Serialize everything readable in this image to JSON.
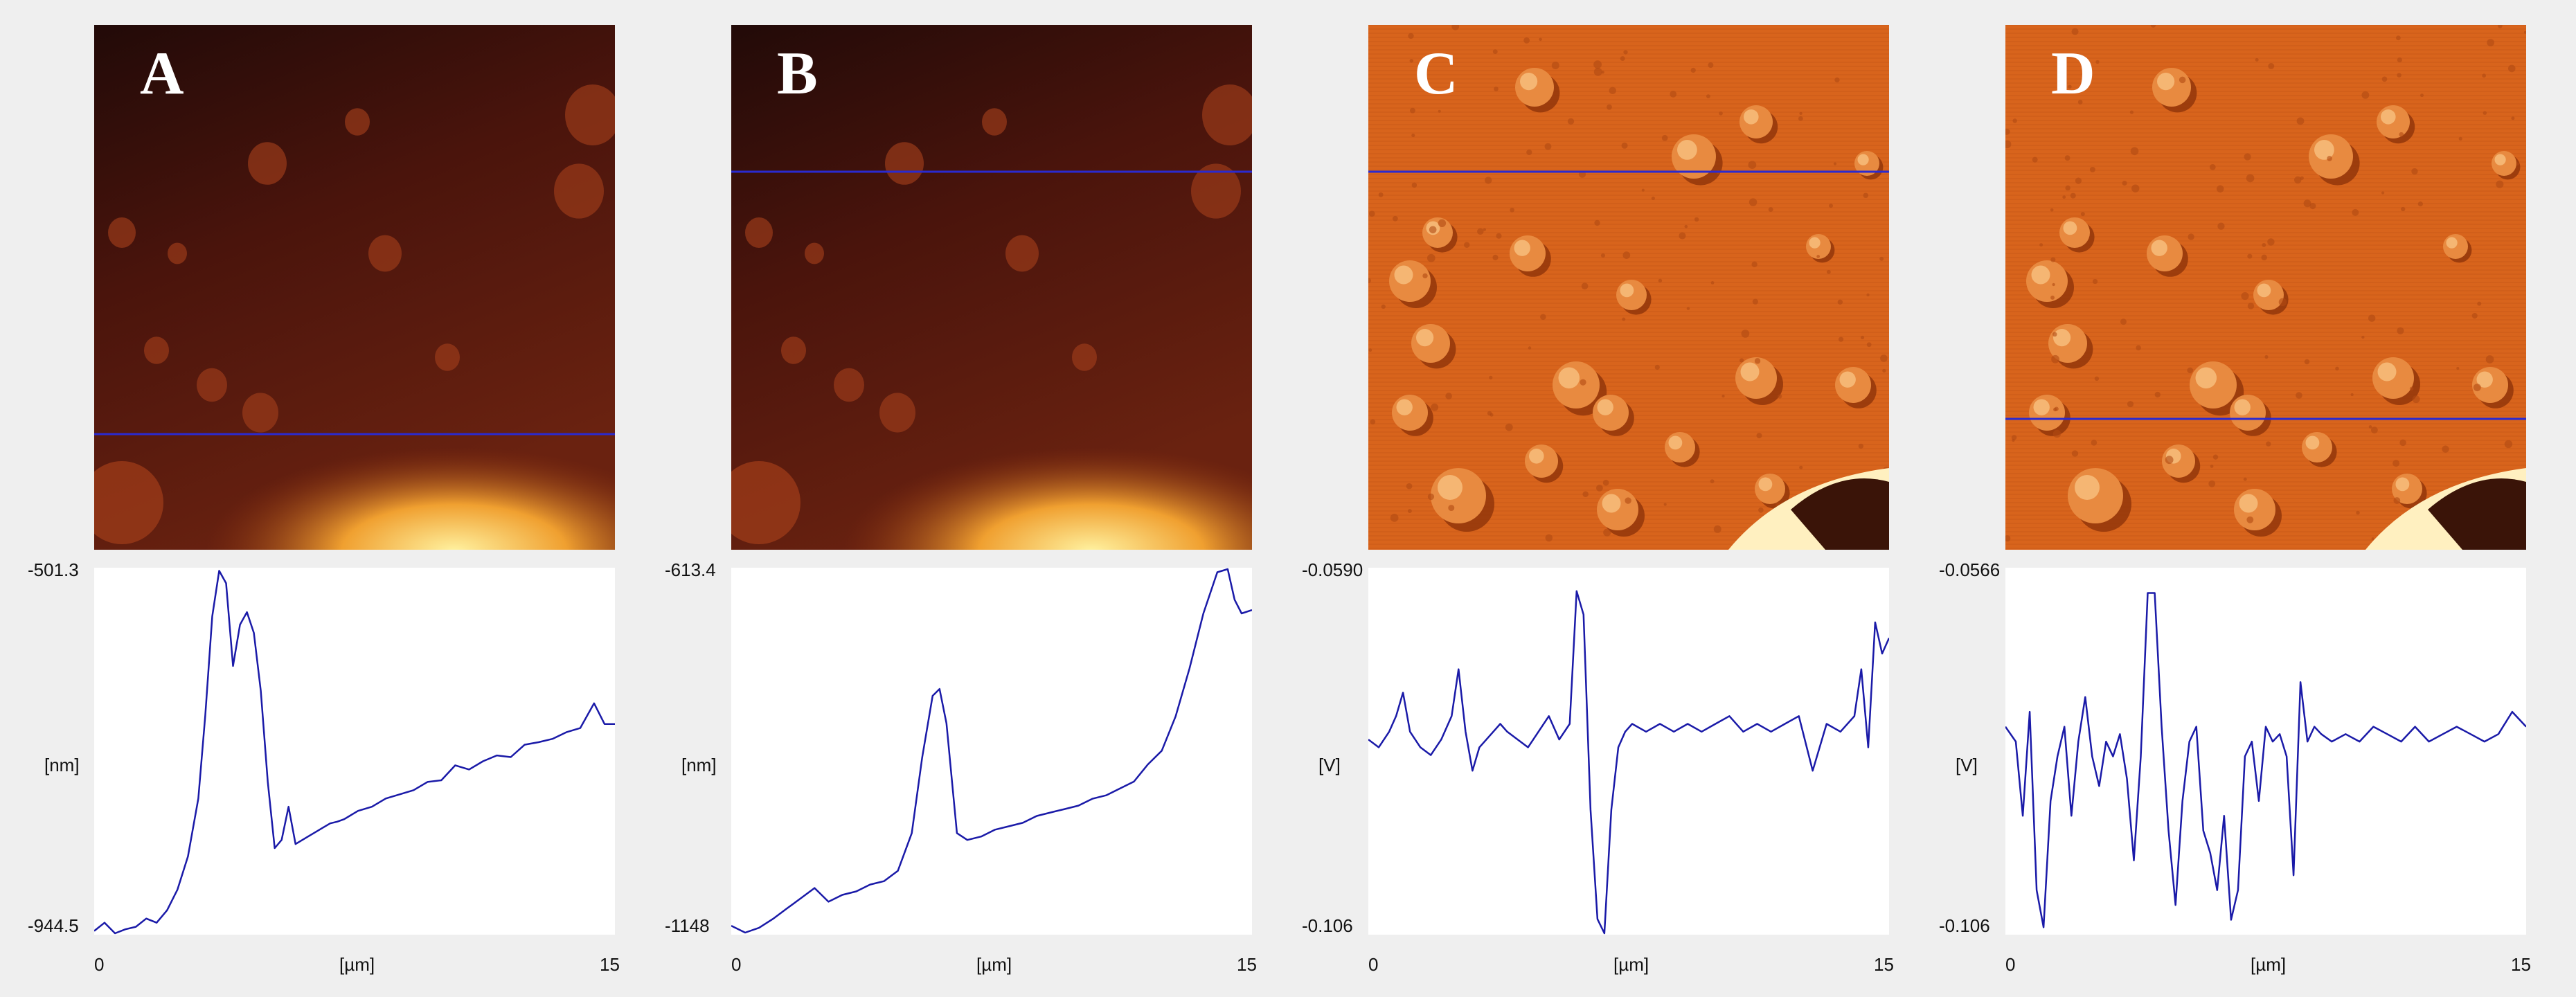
{
  "panels": [
    {
      "letter": "A",
      "map_style": "height",
      "ymax_label": "-501.3",
      "ymin_label": "-944.5",
      "yunit": "[nm]",
      "x0_label": "0",
      "x1_label": "15",
      "xunit": "[µm]"
    },
    {
      "letter": "B",
      "map_style": "height",
      "ymax_label": "-613.4",
      "ymin_label": "-1148",
      "yunit": "[nm]",
      "x0_label": "0",
      "x1_label": "15",
      "xunit": "[µm]"
    },
    {
      "letter": "C",
      "map_style": "deflection",
      "ymax_label": "-0.0590",
      "ymin_label": "-0.106",
      "yunit": "[V]",
      "x0_label": "0",
      "x1_label": "15",
      "xunit": "[µm]"
    },
    {
      "letter": "D",
      "map_style": "deflection",
      "ymax_label": "-0.0566",
      "ymin_label": "-0.106",
      "yunit": "[V]",
      "x0_label": "0",
      "x1_label": "15",
      "xunit": "[µm]"
    }
  ],
  "chart_data": [
    {
      "type": "line",
      "xlabel": "[µm]",
      "ylabel": "[nm]",
      "xlim": [
        0,
        15
      ],
      "ylim": [
        -944.5,
        -501.3
      ],
      "scan_line_y_fraction": 0.78,
      "series": [
        {
          "x": [
            0,
            0.3,
            0.6,
            0.9,
            1.2,
            1.5,
            1.8,
            2.1,
            2.4,
            2.7,
            3.0,
            3.2,
            3.4,
            3.6,
            3.8,
            4.0,
            4.2,
            4.4,
            4.6,
            4.8,
            5.0,
            5.2,
            5.4,
            5.6,
            5.8,
            6.0,
            6.2,
            6.4,
            6.6,
            6.8,
            7.0,
            7.2,
            7.6,
            8.0,
            8.4,
            8.8,
            9.2,
            9.6,
            10.0,
            10.4,
            10.8,
            11.2,
            11.6,
            12.0,
            12.4,
            12.8,
            13.2,
            13.6,
            14.0,
            14.4,
            14.7,
            15.0
          ],
          "y": [
            -940,
            -930,
            -944,
            -938,
            -935,
            -925,
            -930,
            -915,
            -890,
            -850,
            -780,
            -680,
            -560,
            -505,
            -520,
            -620,
            -570,
            -555,
            -580,
            -650,
            -760,
            -840,
            -830,
            -790,
            -835,
            -830,
            -825,
            -820,
            -815,
            -810,
            -808,
            -805,
            -795,
            -790,
            -780,
            -775,
            -770,
            -760,
            -758,
            -740,
            -745,
            -735,
            -728,
            -730,
            -715,
            -712,
            -708,
            -700,
            -695,
            -665,
            -690,
            -690
          ]
        }
      ]
    },
    {
      "type": "line",
      "xlabel": "[µm]",
      "ylabel": "[nm]",
      "xlim": [
        0,
        15
      ],
      "ylim": [
        -1148,
        -613.4
      ],
      "scan_line_y_fraction": 0.28,
      "series": [
        {
          "x": [
            0,
            0.4,
            0.8,
            1.2,
            1.6,
            2.0,
            2.4,
            2.8,
            3.2,
            3.6,
            4.0,
            4.4,
            4.8,
            5.2,
            5.5,
            5.8,
            6.0,
            6.2,
            6.5,
            6.8,
            7.2,
            7.6,
            8.0,
            8.4,
            8.8,
            9.2,
            9.6,
            10.0,
            10.4,
            10.8,
            11.2,
            11.6,
            12.0,
            12.4,
            12.8,
            13.2,
            13.6,
            14.0,
            14.3,
            14.5,
            14.7,
            15.0
          ],
          "y": [
            -1135,
            -1145,
            -1138,
            -1125,
            -1110,
            -1095,
            -1080,
            -1100,
            -1090,
            -1085,
            -1075,
            -1070,
            -1055,
            -1000,
            -890,
            -800,
            -790,
            -840,
            -1000,
            -1010,
            -1005,
            -995,
            -990,
            -985,
            -975,
            -970,
            -965,
            -960,
            -950,
            -945,
            -935,
            -925,
            -900,
            -880,
            -830,
            -760,
            -680,
            -620,
            -615,
            -660,
            -680,
            -675
          ]
        }
      ]
    },
    {
      "type": "line",
      "xlabel": "[µm]",
      "ylabel": "[V]",
      "xlim": [
        0,
        15
      ],
      "ylim": [
        -0.106,
        -0.059
      ],
      "scan_line_y_fraction": 0.28,
      "series": [
        {
          "x": [
            0,
            0.3,
            0.6,
            0.8,
            1.0,
            1.2,
            1.5,
            1.8,
            2.1,
            2.4,
            2.6,
            2.8,
            3.0,
            3.2,
            3.4,
            3.6,
            3.8,
            4.0,
            4.3,
            4.6,
            4.9,
            5.2,
            5.5,
            5.8,
            6.0,
            6.2,
            6.4,
            6.6,
            6.8,
            7.0,
            7.2,
            7.4,
            7.6,
            8.0,
            8.4,
            8.8,
            9.2,
            9.6,
            10.0,
            10.4,
            10.8,
            11.2,
            11.6,
            12.0,
            12.4,
            12.8,
            13.2,
            13.6,
            14.0,
            14.2,
            14.4,
            14.6,
            14.8,
            15.0
          ],
          "y": [
            -0.081,
            -0.082,
            -0.08,
            -0.078,
            -0.075,
            -0.08,
            -0.082,
            -0.083,
            -0.081,
            -0.078,
            -0.072,
            -0.08,
            -0.085,
            -0.082,
            -0.081,
            -0.08,
            -0.079,
            -0.08,
            -0.081,
            -0.082,
            -0.08,
            -0.078,
            -0.081,
            -0.079,
            -0.062,
            -0.065,
            -0.09,
            -0.104,
            -0.106,
            -0.09,
            -0.082,
            -0.08,
            -0.079,
            -0.08,
            -0.079,
            -0.08,
            -0.079,
            -0.08,
            -0.079,
            -0.078,
            -0.08,
            -0.079,
            -0.08,
            -0.079,
            -0.078,
            -0.085,
            -0.079,
            -0.08,
            -0.078,
            -0.072,
            -0.082,
            -0.066,
            -0.07,
            -0.068
          ]
        }
      ]
    },
    {
      "type": "line",
      "xlabel": "[µm]",
      "ylabel": "[V]",
      "xlim": [
        0,
        15
      ],
      "ylim": [
        -0.106,
        -0.0566
      ],
      "scan_line_y_fraction": 0.75,
      "series": [
        {
          "x": [
            0,
            0.3,
            0.5,
            0.7,
            0.9,
            1.1,
            1.3,
            1.5,
            1.7,
            1.9,
            2.1,
            2.3,
            2.5,
            2.7,
            2.9,
            3.1,
            3.3,
            3.5,
            3.7,
            3.9,
            4.1,
            4.3,
            4.5,
            4.7,
            4.9,
            5.1,
            5.3,
            5.5,
            5.7,
            5.9,
            6.1,
            6.3,
            6.5,
            6.7,
            6.9,
            7.1,
            7.3,
            7.5,
            7.7,
            7.9,
            8.1,
            8.3,
            8.5,
            8.7,
            8.9,
            9.1,
            9.4,
            9.8,
            10.2,
            10.6,
            11.0,
            11.4,
            11.8,
            12.2,
            12.6,
            13.0,
            13.4,
            13.8,
            14.2,
            14.6,
            15.0
          ],
          "y": [
            -0.078,
            -0.08,
            -0.09,
            -0.076,
            -0.1,
            -0.105,
            -0.088,
            -0.082,
            -0.078,
            -0.09,
            -0.08,
            -0.074,
            -0.082,
            -0.086,
            -0.08,
            -0.082,
            -0.079,
            -0.085,
            -0.096,
            -0.082,
            -0.06,
            -0.06,
            -0.078,
            -0.092,
            -0.102,
            -0.088,
            -0.08,
            -0.078,
            -0.092,
            -0.095,
            -0.1,
            -0.09,
            -0.104,
            -0.1,
            -0.082,
            -0.08,
            -0.088,
            -0.078,
            -0.08,
            -0.079,
            -0.082,
            -0.098,
            -0.072,
            -0.08,
            -0.078,
            -0.079,
            -0.08,
            -0.079,
            -0.08,
            -0.078,
            -0.079,
            -0.08,
            -0.078,
            -0.08,
            -0.079,
            -0.078,
            -0.079,
            -0.08,
            -0.079,
            -0.076,
            -0.078
          ]
        }
      ]
    }
  ]
}
